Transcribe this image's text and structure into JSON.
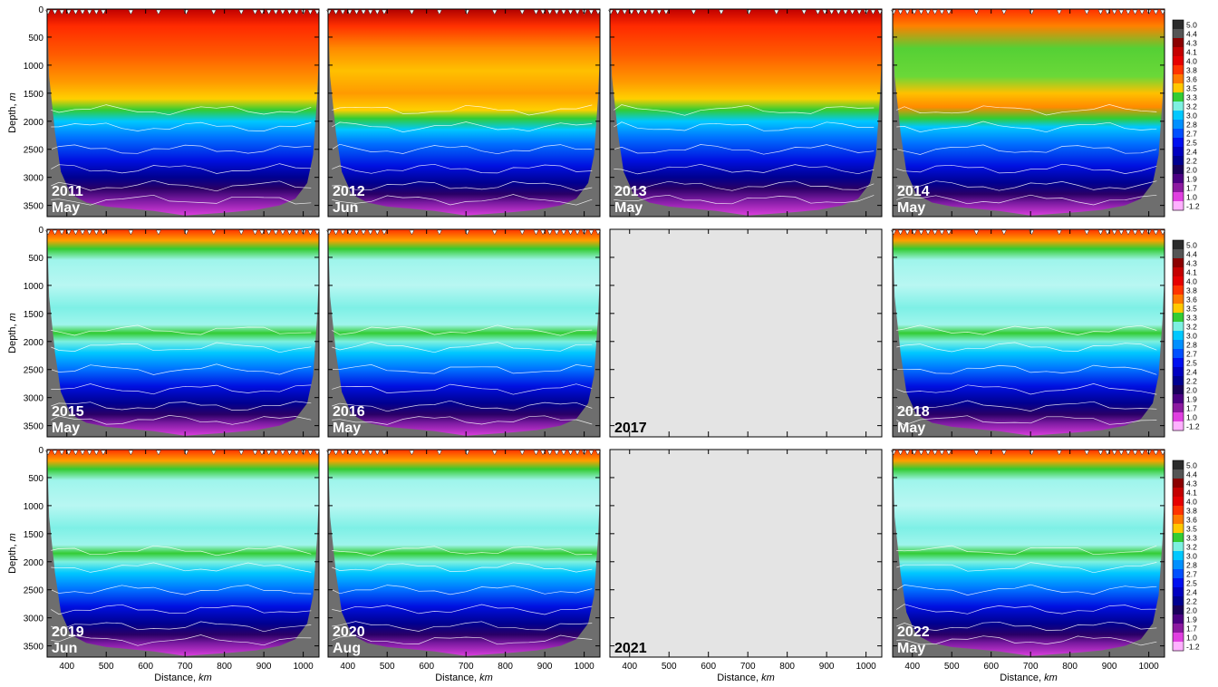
{
  "chart_data": {
    "type": "heatmap",
    "layout": {
      "rows": 3,
      "cols": 4
    },
    "xlabel_text": "Distance,",
    "xlabel_unit": "km",
    "ylabel_text": "Depth,",
    "ylabel_unit": "m",
    "xlim": [
      350,
      1040
    ],
    "ylim": [
      0,
      3700
    ],
    "xticks": [
      400,
      500,
      600,
      700,
      800,
      900,
      1000
    ],
    "yticks": [
      0,
      500,
      1000,
      1500,
      2000,
      2500,
      3000,
      3500
    ],
    "colorbar": {
      "ticks": [
        "5.0",
        "4.4",
        "4.3",
        "4.1",
        "4.0",
        "3.8",
        "3.6",
        "3.5",
        "3.3",
        "3.2",
        "3.0",
        "2.8",
        "2.7",
        "2.5",
        "2.4",
        "2.2",
        "2.0",
        "1.9",
        "1.7",
        "1.0",
        "-1.2"
      ],
      "colors": [
        "#2b2b2b",
        "#555555",
        "#8b0000",
        "#c40000",
        "#e60000",
        "#ff3300",
        "#ff7a00",
        "#ffc800",
        "#33cc33",
        "#7df0e0",
        "#00c8ff",
        "#0090ff",
        "#0050ff",
        "#0010f0",
        "#0000c0",
        "#000090",
        "#1a005a",
        "#4b0082",
        "#8c1aa0",
        "#e040e0",
        "#ffb0ff"
      ]
    },
    "panels": [
      {
        "year": "2011",
        "month": "May",
        "style": "warm",
        "data": true
      },
      {
        "year": "2012",
        "month": "Jun",
        "style": "warm2",
        "data": true
      },
      {
        "year": "2013",
        "month": "May",
        "style": "warm",
        "data": true
      },
      {
        "year": "2014",
        "month": "May",
        "style": "mixed",
        "data": true
      },
      {
        "year": "2015",
        "month": "May",
        "style": "cool",
        "data": true
      },
      {
        "year": "2016",
        "month": "May",
        "style": "cool",
        "data": true
      },
      {
        "year": "2017",
        "month": "",
        "style": "none",
        "data": false
      },
      {
        "year": "2018",
        "month": "May",
        "style": "cool",
        "data": true
      },
      {
        "year": "2019",
        "month": "Jun",
        "style": "cool",
        "data": true
      },
      {
        "year": "2020",
        "month": "Aug",
        "style": "cool",
        "data": true
      },
      {
        "year": "2021",
        "month": "",
        "style": "none",
        "data": false
      },
      {
        "year": "2022",
        "month": "May",
        "style": "cool",
        "data": true
      }
    ]
  }
}
